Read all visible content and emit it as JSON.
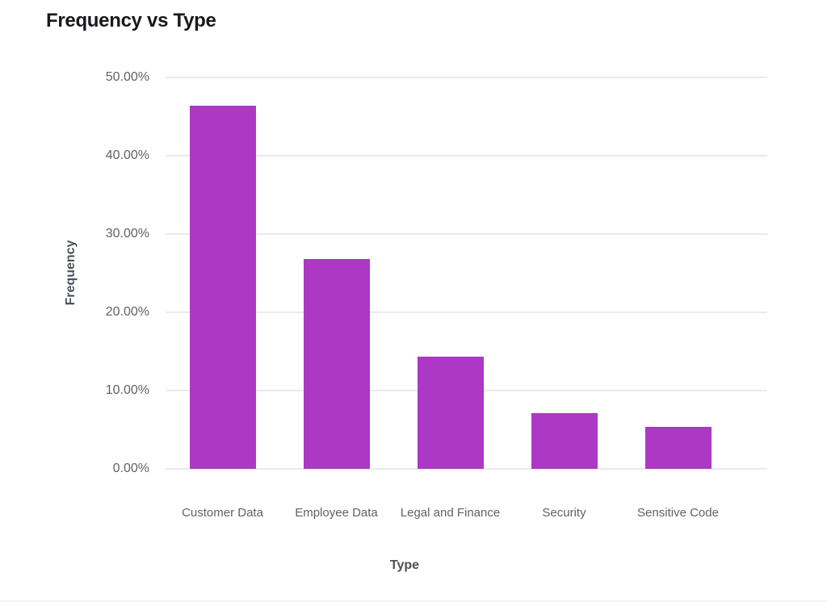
{
  "page": {
    "background": "#ffffff",
    "bottom_border_color": "#eef1f3"
  },
  "chart_data": {
    "type": "bar",
    "title": "Frequency vs Type",
    "xlabel": "Type",
    "ylabel": "Frequency",
    "categories": [
      "Customer Data",
      "Employee Data",
      "Legal and Finance",
      "Security",
      "Sensitive Code"
    ],
    "values": [
      46.43,
      26.79,
      14.29,
      7.14,
      5.36
    ],
    "value_unit": "%",
    "ylim": [
      0,
      50
    ],
    "ytick_step": 10,
    "yticks": [
      {
        "value": 50,
        "label": "50.00%"
      },
      {
        "value": 40,
        "label": "40.00%"
      },
      {
        "value": 30,
        "label": "30.00%"
      },
      {
        "value": 20,
        "label": "20.00%"
      },
      {
        "value": 10,
        "label": "10.00%"
      },
      {
        "value": 0,
        "label": "0.00%"
      }
    ],
    "grid": "horizontal",
    "legend": "none",
    "bar_color": "#ac38c5",
    "colors": {
      "title_text": "#17191c",
      "axis_title_text": "#4b5055",
      "tick_label_text": "#5e6267",
      "gridline": "#e9eaec"
    }
  }
}
